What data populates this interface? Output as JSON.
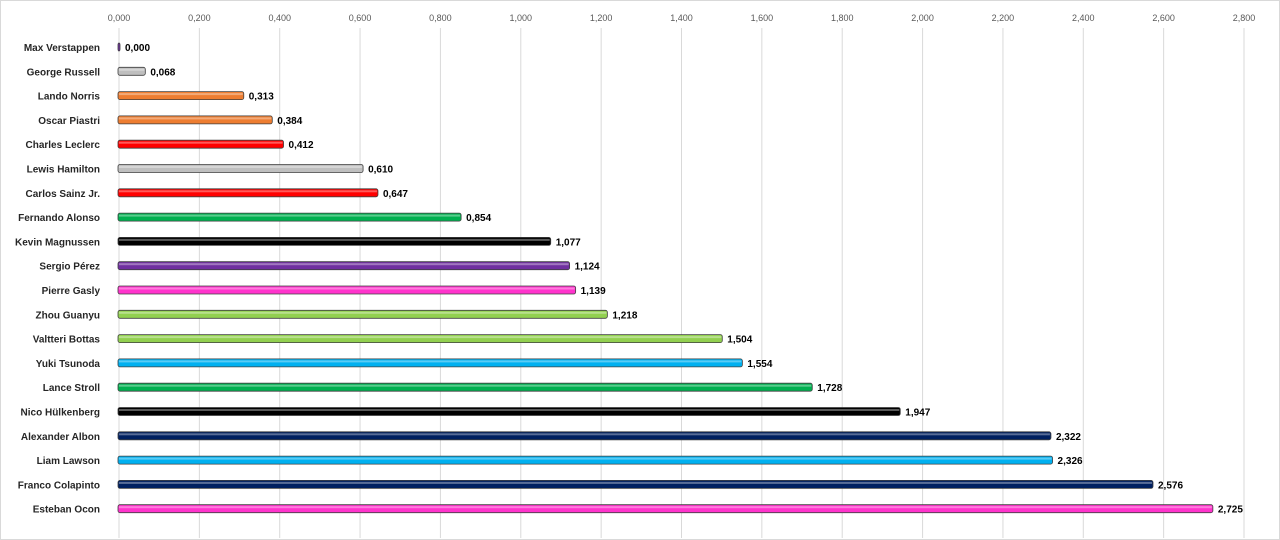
{
  "chart_data": {
    "type": "bar",
    "orientation": "horizontal",
    "title": "",
    "xlabel": "",
    "ylabel": "",
    "xlim": [
      0,
      2.8
    ],
    "tick_step": 0.2,
    "tick_labels": [
      "0,000",
      "0,200",
      "0,400",
      "0,600",
      "0,800",
      "1,000",
      "1,200",
      "1,400",
      "1,600",
      "1,800",
      "2,000",
      "2,200",
      "2,400",
      "2,600",
      "2,800"
    ],
    "axis_position": "top",
    "grid": true,
    "legend": "none",
    "categories": [
      "Max Verstappen",
      "George Russell",
      "Lando Norris",
      "Oscar Piastri",
      "Charles Leclerc",
      "Lewis Hamilton",
      "Carlos Sainz Jr.",
      "Fernando Alonso",
      "Kevin Magnussen",
      "Sergio Pérez",
      "Pierre Gasly",
      "Zhou Guanyu",
      "Valtteri Bottas",
      "Yuki Tsunoda",
      "Lance Stroll",
      "Nico Hülkenberg",
      "Alexander Albon",
      "Liam Lawson",
      "Franco Colapinto",
      "Esteban Ocon"
    ],
    "values": [
      0.0,
      0.068,
      0.313,
      0.384,
      0.412,
      0.61,
      0.647,
      0.854,
      1.077,
      1.124,
      1.139,
      1.218,
      1.504,
      1.554,
      1.728,
      1.947,
      2.322,
      2.326,
      2.576,
      2.725
    ],
    "value_labels": [
      "0,000",
      "0,068",
      "0,313",
      "0,384",
      "0,412",
      "0,610",
      "0,647",
      "0,854",
      "1,077",
      "1,124",
      "1,139",
      "1,218",
      "1,504",
      "1,554",
      "1,728",
      "1,947",
      "2,322",
      "2,326",
      "2,576",
      "2,725"
    ],
    "colors": [
      "#7030a0",
      "#bfbfbf",
      "#ed7d31",
      "#ed7d31",
      "#ff0000",
      "#bfbfbf",
      "#ff0000",
      "#00b050",
      "#000000",
      "#7030a0",
      "#ff33cc",
      "#92d050",
      "#92d050",
      "#00b0f0",
      "#00b050",
      "#000000",
      "#002060",
      "#00b0f0",
      "#002060",
      "#ff33cc"
    ]
  }
}
